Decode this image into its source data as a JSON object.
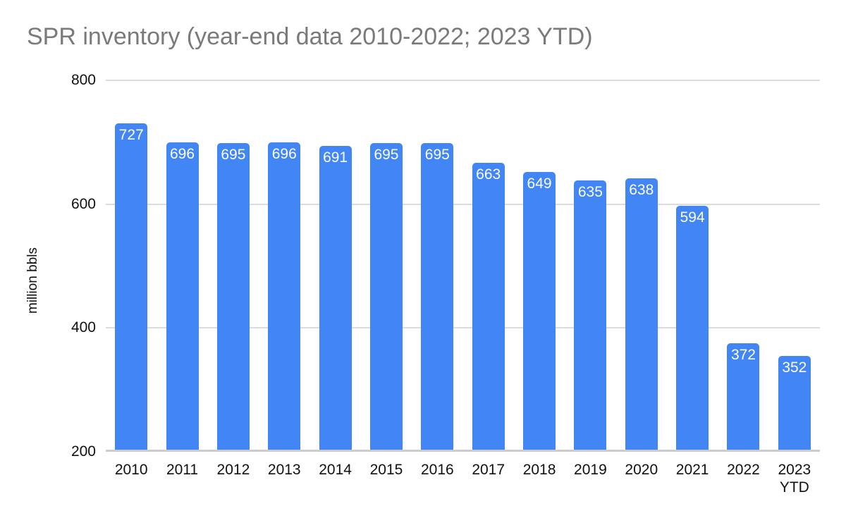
{
  "chart_data": {
    "type": "bar",
    "title": "SPR inventory (year-end data 2010-2022; 2023 YTD)",
    "xlabel": "",
    "ylabel": "million bbls",
    "categories": [
      "2010",
      "2011",
      "2012",
      "2013",
      "2014",
      "2015",
      "2016",
      "2017",
      "2018",
      "2019",
      "2020",
      "2021",
      "2022",
      "2023\nYTD"
    ],
    "values": [
      727,
      696,
      695,
      696,
      691,
      695,
      695,
      663,
      649,
      635,
      638,
      594,
      372,
      352
    ],
    "value_labels_shown": true,
    "ylim": [
      200,
      800
    ],
    "yticks": [
      200,
      400,
      600,
      800
    ],
    "grid": true,
    "legend": "none",
    "colors": {
      "bar": "#4285f4",
      "bar_value_label": "#ffffff",
      "title": "#7a7a7a",
      "axis_text": "#111111",
      "gridline": "#dcdcdc",
      "baseline": "#cccccc",
      "background": "#ffffff"
    }
  }
}
